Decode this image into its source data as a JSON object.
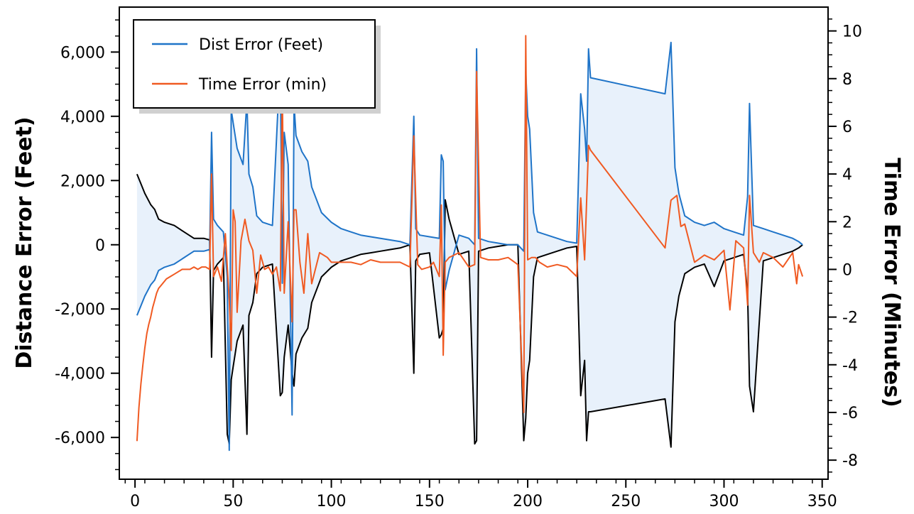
{
  "chart_data": {
    "type": "line",
    "title": "",
    "xlabel": "",
    "ylabel": "Distance Error (Feet)",
    "y2label": "Time Error (Minutes)",
    "xlim": [
      -8,
      353
    ],
    "ylim": [
      -7300,
      7400
    ],
    "y2lim": [
      -8.8,
      11
    ],
    "x_ticks": [
      0,
      50,
      100,
      150,
      200,
      250,
      300,
      350
    ],
    "x_tick_labels": [
      "0",
      "50",
      "100",
      "150",
      "200",
      "250",
      "300",
      "350"
    ],
    "y_ticks": [
      -6000,
      -4000,
      -2000,
      0,
      2000,
      4000,
      6000
    ],
    "y_tick_labels": [
      "-6,000",
      "-4,000",
      "-2,000",
      "0",
      "2,000",
      "4,000",
      "6,000"
    ],
    "y2_ticks": [
      -8,
      -6,
      -4,
      -2,
      0,
      2,
      4,
      6,
      8,
      10
    ],
    "y2_tick_labels": [
      "-8",
      "-6",
      "-4",
      "-2",
      "0",
      "2",
      "4",
      "6",
      "8",
      "10"
    ],
    "grid": false,
    "legend_position": "top-left",
    "series": [
      {
        "name": "Dist Error (Feet)",
        "axis": "left",
        "color": "#1f74c8",
        "x": [
          1,
          3,
          5,
          8,
          10,
          12,
          15,
          20,
          25,
          30,
          35,
          38,
          39,
          40,
          42,
          45,
          47,
          48,
          49,
          50,
          52,
          55,
          57,
          58,
          60,
          62,
          65,
          70,
          74,
          75,
          76,
          78,
          80,
          81,
          82,
          85,
          88,
          90,
          95,
          100,
          105,
          110,
          115,
          120,
          125,
          130,
          135,
          140,
          142,
          143,
          145,
          150,
          155,
          156,
          157,
          158,
          160,
          165,
          170,
          173,
          174,
          175,
          180,
          185,
          190,
          195,
          198,
          199,
          200,
          201,
          203,
          205,
          210,
          215,
          220,
          225,
          227,
          229,
          230,
          231,
          232,
          270,
          273,
          275,
          277,
          280,
          285,
          290,
          295,
          300,
          305,
          310,
          312,
          313,
          315,
          320,
          325,
          330,
          335,
          338,
          340
        ],
        "values": [
          -2200,
          -1900,
          -1600,
          -1250,
          -1100,
          -800,
          -700,
          -600,
          -400,
          -200,
          -200,
          -150,
          3500,
          800,
          600,
          400,
          -1000,
          -6400,
          4200,
          3800,
          3000,
          2500,
          4500,
          2200,
          1800,
          900,
          700,
          600,
          5800,
          -1200,
          3500,
          2500,
          -5300,
          4400,
          3400,
          2900,
          2600,
          1800,
          1000,
          700,
          500,
          400,
          300,
          250,
          200,
          150,
          100,
          0,
          4000,
          500,
          300,
          250,
          200,
          2800,
          2600,
          -1400,
          -800,
          300,
          200,
          0,
          6100,
          200,
          100,
          50,
          0,
          0,
          -200,
          5400,
          4000,
          3600,
          1000,
          400,
          300,
          200,
          100,
          50,
          4700,
          3600,
          2600,
          6100,
          5200,
          4700,
          6300,
          2400,
          1600,
          900,
          700,
          600,
          700,
          500,
          400,
          300,
          1500,
          4400,
          600,
          500,
          400,
          300,
          200,
          100,
          0
        ]
      },
      {
        "name": "",
        "axis": "left",
        "color": "#000000",
        "x": [
          1,
          3,
          5,
          8,
          10,
          12,
          15,
          20,
          25,
          30,
          35,
          38,
          39,
          40,
          42,
          45,
          47,
          48,
          49,
          50,
          52,
          55,
          57,
          58,
          60,
          62,
          65,
          70,
          74,
          75,
          76,
          78,
          80,
          81,
          82,
          85,
          88,
          90,
          95,
          100,
          105,
          110,
          115,
          120,
          125,
          130,
          135,
          140,
          142,
          143,
          145,
          150,
          155,
          156,
          157,
          158,
          160,
          165,
          170,
          173,
          174,
          175,
          180,
          185,
          190,
          195,
          198,
          199,
          200,
          201,
          203,
          205,
          210,
          215,
          220,
          225,
          227,
          229,
          230,
          231,
          232,
          270,
          273,
          275,
          277,
          280,
          285,
          290,
          295,
          300,
          305,
          310,
          312,
          313,
          315,
          320,
          325,
          330,
          335,
          338,
          340
        ],
        "values": [
          2200,
          1900,
          1600,
          1250,
          1100,
          800,
          700,
          600,
          400,
          200,
          200,
          150,
          -3500,
          -800,
          -600,
          -400,
          -5900,
          -6200,
          -4200,
          -3800,
          -3000,
          -2500,
          -5900,
          -2200,
          -1800,
          -900,
          -700,
          -600,
          -4700,
          -4600,
          -3500,
          -2500,
          -4000,
          -4400,
          -3400,
          -2900,
          -2600,
          -1800,
          -1000,
          -700,
          -500,
          -400,
          -300,
          -250,
          -200,
          -150,
          -100,
          0,
          -4000,
          -500,
          -300,
          -250,
          -2900,
          -2800,
          -2600,
          1400,
          800,
          -300,
          -200,
          -6200,
          -6100,
          -200,
          -100,
          -50,
          0,
          0,
          -6100,
          -5400,
          -4000,
          -3600,
          -1000,
          -400,
          -300,
          -200,
          -100,
          -50,
          -4700,
          -3600,
          -6100,
          -5200,
          -5200,
          -4800,
          -6300,
          -2400,
          -1600,
          -900,
          -700,
          -600,
          -1300,
          -500,
          -400,
          -300,
          -1500,
          -4400,
          -5200,
          -500,
          -400,
          -300,
          -200,
          -100,
          0
        ]
      },
      {
        "name": "Time Error (min)",
        "axis": "right",
        "color": "#f05a22",
        "x": [
          1,
          2,
          3,
          4,
          5,
          6,
          7,
          8,
          9,
          10,
          11,
          12,
          14,
          16,
          18,
          20,
          22,
          24,
          26,
          28,
          30,
          32,
          34,
          36,
          38,
          39,
          40,
          42,
          44,
          46,
          48,
          49,
          50,
          51,
          52,
          54,
          56,
          58,
          60,
          62,
          64,
          66,
          68,
          70,
          72,
          74,
          75,
          76,
          78,
          80,
          81,
          82,
          84,
          86,
          88,
          90,
          94,
          98,
          100,
          105,
          110,
          115,
          120,
          125,
          130,
          135,
          140,
          142,
          144,
          146,
          150,
          152,
          155,
          156,
          157,
          158,
          160,
          165,
          170,
          173,
          174,
          176,
          180,
          185,
          190,
          195,
          198,
          199,
          200,
          202,
          204,
          206,
          210,
          215,
          220,
          225,
          227,
          229,
          231,
          232,
          270,
          273,
          276,
          278,
          280,
          285,
          290,
          295,
          300,
          303,
          306,
          310,
          312,
          313,
          315,
          318,
          320,
          325,
          330,
          335,
          337,
          338,
          340
        ],
        "values": [
          -7.2,
          -5.8,
          -4.8,
          -4.0,
          -3.3,
          -2.7,
          -2.3,
          -2.0,
          -1.6,
          -1.3,
          -1.0,
          -0.8,
          -0.6,
          -0.4,
          -0.3,
          -0.2,
          -0.1,
          0.0,
          0.0,
          0.0,
          0.1,
          0.0,
          0.1,
          0.1,
          0.0,
          4.0,
          -0.3,
          0.1,
          -0.5,
          1.5,
          -1.3,
          -3.4,
          2.5,
          2.0,
          -1.8,
          1.2,
          2.1,
          1.2,
          0.8,
          -1.0,
          0.6,
          0.0,
          0.1,
          -0.2,
          0.1,
          -0.9,
          7.8,
          -1.0,
          2.0,
          -2.2,
          2.5,
          2.5,
          0.3,
          -1.0,
          1.5,
          -0.6,
          0.7,
          0.5,
          0.3,
          0.3,
          0.3,
          0.2,
          0.4,
          0.3,
          0.3,
          0.3,
          0.1,
          5.6,
          0.2,
          0.0,
          0.1,
          0.3,
          -0.3,
          2.7,
          -3.6,
          0.3,
          0.5,
          0.7,
          0.1,
          0.2,
          8.3,
          0.5,
          0.4,
          0.4,
          0.5,
          0.2,
          -6.0,
          9.8,
          0.4,
          0.5,
          0.5,
          0.3,
          0.1,
          0.2,
          0.1,
          -0.3,
          3.0,
          0.4,
          5.2,
          5.0,
          0.9,
          2.9,
          3.1,
          1.8,
          1.9,
          0.3,
          0.6,
          0.4,
          0.8,
          -1.7,
          1.2,
          0.9,
          -1.5,
          3.1,
          0.7,
          0.3,
          0.7,
          0.5,
          0.1,
          0.7,
          -0.6,
          0.2,
          -0.3
        ]
      }
    ]
  },
  "legend": {
    "items": [
      {
        "label": "Dist Error (Feet)",
        "color": "#1f74c8"
      },
      {
        "label": "Time Error (min)",
        "color": "#f05a22"
      }
    ]
  },
  "colors": {
    "fill": "#e8f1fb",
    "axis": "#000000"
  }
}
